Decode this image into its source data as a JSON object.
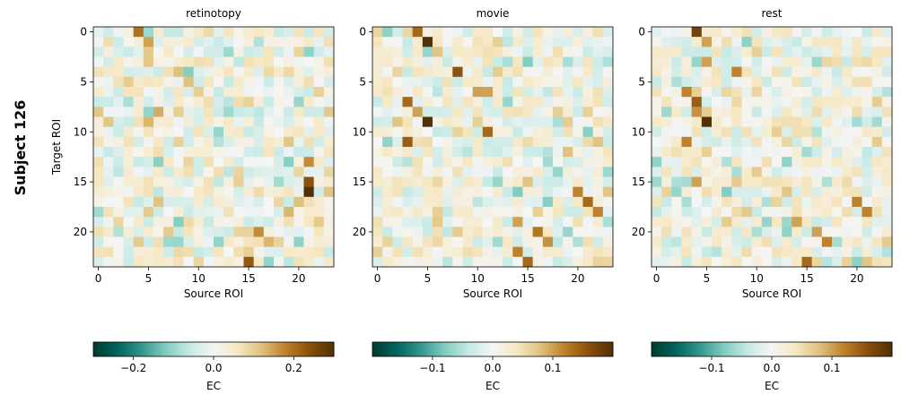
{
  "figure": {
    "row_label": "Subject 126"
  },
  "chart_data": [
    {
      "type": "heatmap",
      "title": "retinotopy",
      "xlabel": "Source ROI",
      "ylabel": "Target ROI",
      "x_ticks": [
        "0",
        "5",
        "10",
        "15",
        "20"
      ],
      "y_ticks": [
        "0",
        "5",
        "10",
        "15",
        "20"
      ],
      "colormap": "BrBG_r",
      "colorbar": {
        "label": "EC",
        "range": [
          -0.3,
          0.3
        ],
        "ticks": [
          -0.2,
          0.0,
          0.2
        ],
        "tick_labels": [
          "−0.2",
          "0.0",
          "0.2"
        ]
      },
      "size": 24,
      "seed": 126,
      "diagonal_cells": [
        [
          0,
          4,
          0.2
        ],
        [
          1,
          5,
          0.15
        ],
        [
          4,
          8,
          0.12
        ],
        [
          5,
          9,
          0.12
        ],
        [
          6,
          10,
          0.1
        ],
        [
          8,
          6,
          0.14
        ],
        [
          9,
          5,
          0.13
        ],
        [
          13,
          21,
          0.17
        ],
        [
          15,
          21,
          0.24
        ],
        [
          16,
          21,
          0.3
        ],
        [
          17,
          20,
          0.12
        ],
        [
          18,
          19,
          0.13
        ],
        [
          20,
          16,
          0.17
        ],
        [
          21,
          17,
          0.13
        ],
        [
          23,
          15,
          0.23
        ]
      ]
    },
    {
      "type": "heatmap",
      "title": "movie",
      "xlabel": "Source ROI",
      "ylabel": "",
      "x_ticks": [
        "0",
        "5",
        "10",
        "15",
        "20"
      ],
      "y_ticks": [
        "0",
        "5",
        "10",
        "15",
        "20"
      ],
      "colormap": "BrBG_r",
      "colorbar": {
        "label": "EC",
        "range": [
          -0.2,
          0.2
        ],
        "ticks": [
          -0.1,
          0.0,
          0.1
        ],
        "tick_labels": [
          "−0.1",
          "0.0",
          "0.1"
        ]
      },
      "size": 24,
      "seed": 7,
      "diagonal_cells": [
        [
          0,
          4,
          0.14
        ],
        [
          1,
          5,
          0.2
        ],
        [
          4,
          8,
          0.16
        ],
        [
          6,
          10,
          0.1
        ],
        [
          6,
          11,
          0.1
        ],
        [
          7,
          3,
          0.14
        ],
        [
          8,
          4,
          0.1
        ],
        [
          9,
          5,
          0.2
        ],
        [
          10,
          11,
          0.14
        ],
        [
          11,
          3,
          0.15
        ],
        [
          16,
          20,
          0.12
        ],
        [
          17,
          21,
          0.14
        ],
        [
          18,
          22,
          0.12
        ],
        [
          19,
          14,
          0.1
        ],
        [
          20,
          16,
          0.13
        ],
        [
          21,
          17,
          0.11
        ],
        [
          22,
          14,
          0.12
        ],
        [
          23,
          15,
          0.14
        ]
      ]
    },
    {
      "type": "heatmap",
      "title": "rest",
      "xlabel": "Source ROI",
      "ylabel": "",
      "x_ticks": [
        "0",
        "5",
        "10",
        "15",
        "20"
      ],
      "y_ticks": [
        "0",
        "5",
        "10",
        "15",
        "20"
      ],
      "colormap": "BrBG_r",
      "colorbar": {
        "label": "EC",
        "range": [
          -0.2,
          0.2
        ],
        "ticks": [
          -0.1,
          0.0,
          0.1
        ],
        "tick_labels": [
          "−0.1",
          "0.0",
          "0.1"
        ]
      },
      "size": 24,
      "seed": 33,
      "diagonal_cells": [
        [
          0,
          4,
          0.18
        ],
        [
          1,
          5,
          0.1
        ],
        [
          3,
          5,
          0.1
        ],
        [
          4,
          8,
          0.12
        ],
        [
          6,
          3,
          0.12
        ],
        [
          7,
          4,
          0.15
        ],
        [
          8,
          4,
          0.11
        ],
        [
          9,
          5,
          0.2
        ],
        [
          11,
          3,
          0.12
        ],
        [
          15,
          4,
          0.1
        ],
        [
          17,
          20,
          0.12
        ],
        [
          18,
          21,
          0.12
        ],
        [
          19,
          14,
          0.1
        ],
        [
          20,
          16,
          0.1
        ],
        [
          21,
          17,
          0.12
        ],
        [
          23,
          15,
          0.14
        ]
      ]
    }
  ]
}
